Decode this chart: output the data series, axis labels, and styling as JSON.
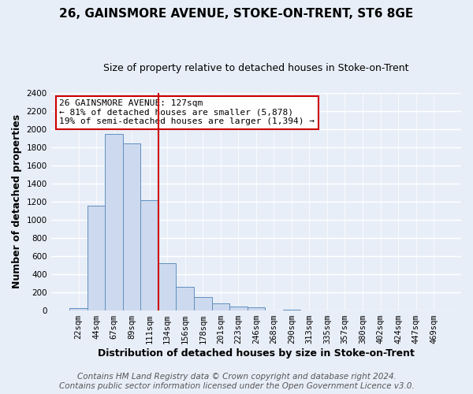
{
  "title": "26, GAINSMORE AVENUE, STOKE-ON-TRENT, ST6 8GE",
  "subtitle": "Size of property relative to detached houses in Stoke-on-Trent",
  "xlabel": "Distribution of detached houses by size in Stoke-on-Trent",
  "ylabel": "Number of detached properties",
  "bar_labels": [
    "22sqm",
    "44sqm",
    "67sqm",
    "89sqm",
    "111sqm",
    "134sqm",
    "156sqm",
    "178sqm",
    "201sqm",
    "223sqm",
    "246sqm",
    "268sqm",
    "290sqm",
    "313sqm",
    "335sqm",
    "357sqm",
    "380sqm",
    "402sqm",
    "424sqm",
    "447sqm",
    "469sqm"
  ],
  "bar_values": [
    25,
    1155,
    1950,
    1840,
    1220,
    520,
    265,
    148,
    80,
    48,
    38,
    5,
    12,
    3,
    2,
    1,
    1,
    0,
    0,
    0,
    0
  ],
  "bar_color": "#cdd9ee",
  "bar_edge_color": "#6090c0",
  "vline_color": "#cc0000",
  "annotation_text": "26 GAINSMORE AVENUE: 127sqm\n← 81% of detached houses are smaller (5,878)\n19% of semi-detached houses are larger (1,394) →",
  "annotation_box_color": "#ffffff",
  "annotation_box_edge": "#cc0000",
  "ylim": [
    0,
    2400
  ],
  "yticks": [
    0,
    200,
    400,
    600,
    800,
    1000,
    1200,
    1400,
    1600,
    1800,
    2000,
    2200,
    2400
  ],
  "footer1": "Contains HM Land Registry data © Crown copyright and database right 2024.",
  "footer2": "Contains public sector information licensed under the Open Government Licence v3.0.",
  "bg_color": "#e8eef8",
  "plot_bg_color": "#e8eef8",
  "grid_color": "#ffffff",
  "title_fontsize": 11,
  "subtitle_fontsize": 9,
  "axis_label_fontsize": 9,
  "tick_fontsize": 7.5,
  "annotation_fontsize": 8,
  "footer_fontsize": 7.5
}
